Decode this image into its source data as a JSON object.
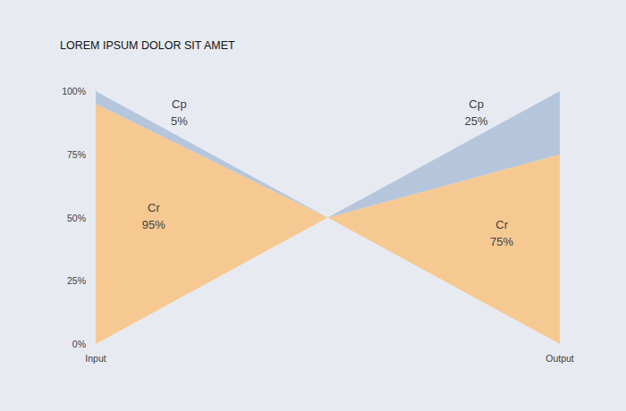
{
  "chart_data": {
    "type": "area",
    "title": "LOREM IPSUM DOLOR SIT AMET",
    "categories": [
      "Input",
      "Output"
    ],
    "stacked": true,
    "data_labels": true,
    "series": [
      {
        "name": "Cr",
        "color": "#f7c992",
        "values": [
          95,
          75
        ],
        "value_labels": [
          "95%",
          "75%"
        ]
      },
      {
        "name": "Cp",
        "color": "#b5c6dc",
        "values": [
          5,
          25
        ],
        "value_labels": [
          "5%",
          "25%"
        ]
      }
    ],
    "ylim": [
      0,
      100
    ],
    "yticks": [
      {
        "value": 0,
        "label": "0%"
      },
      {
        "value": 25,
        "label": "25%"
      },
      {
        "value": 50,
        "label": "50%"
      },
      {
        "value": 75,
        "label": "75%"
      },
      {
        "value": 100,
        "label": "100%"
      }
    ],
    "grid": false
  }
}
